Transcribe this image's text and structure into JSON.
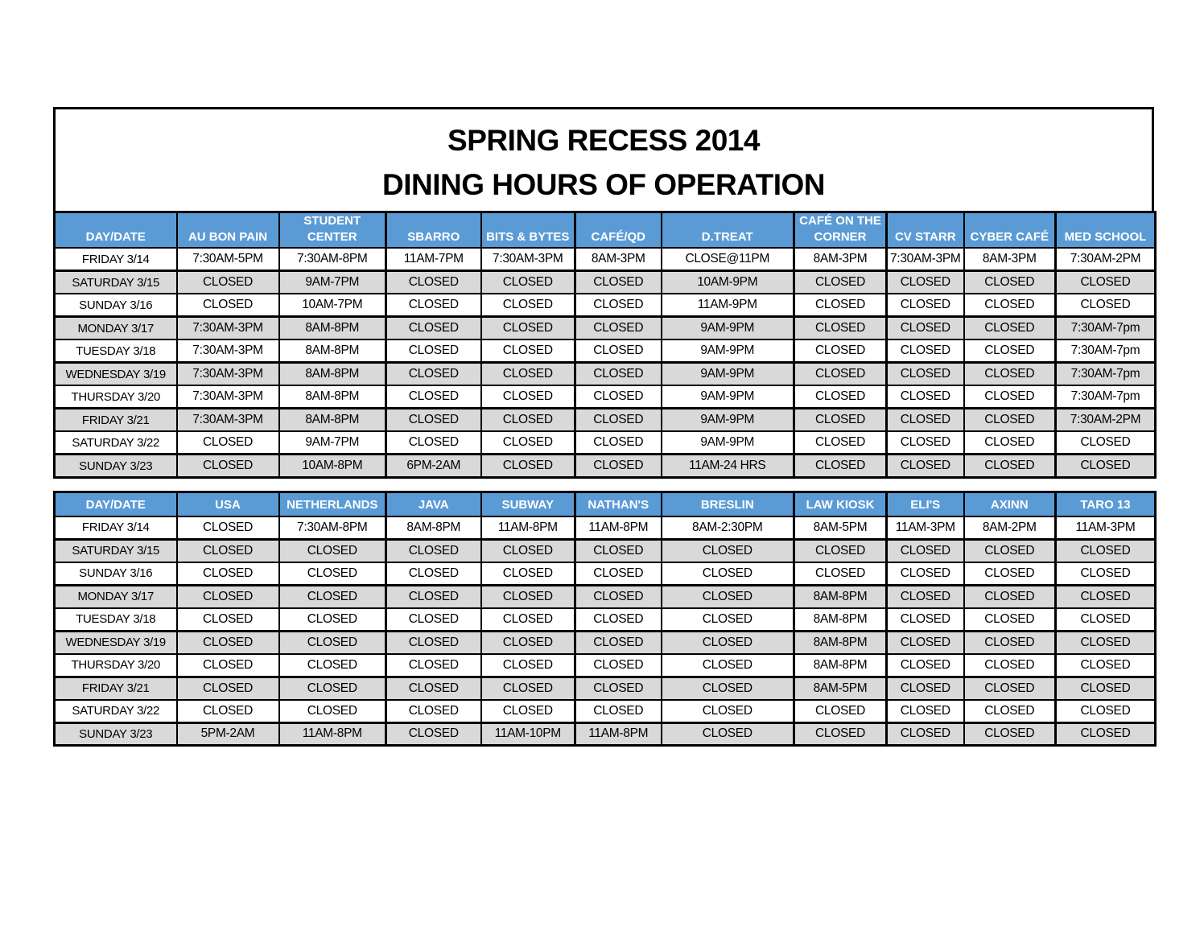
{
  "page": {
    "title_line1": "SPRING RECESS 2014",
    "title_line2": "DINING HOURS OF OPERATION"
  },
  "colors": {
    "header_bg": "#5B9BD5",
    "header_text": "#FFFFFF",
    "row_alt_bg": "#D9D9D9",
    "row_dark_bg": "#BFBFBF",
    "border": "#000000",
    "title_text": "#000000"
  },
  "table1": {
    "columns": [
      "DAY/DATE",
      "AU BON PAIN",
      "STUDENT\nCENTER",
      "SBARRO",
      "BITS & BYTES",
      "CAFÉ/QD",
      "D.TREAT",
      "CAFÉ ON THE\nCORNER",
      "CV STARR",
      "CYBER CAFÉ",
      "MED SCHOOL"
    ],
    "rows": [
      {
        "day": "FRIDAY 3/14",
        "cells": [
          "7:30AM-5PM",
          "7:30AM-8PM",
          "11AM-7PM",
          "7:30AM-3PM",
          "8AM-3PM",
          "CLOSE@11PM",
          "8AM-3PM",
          "7:30AM-3PM",
          "8AM-3PM",
          "7:30AM-2PM"
        ]
      },
      {
        "day": "SATURDAY 3/15",
        "cells": [
          "CLOSED",
          "9AM-7PM",
          "CLOSED",
          "CLOSED",
          "CLOSED",
          "10AM-9PM",
          "CLOSED",
          "CLOSED",
          "CLOSED",
          "CLOSED"
        ]
      },
      {
        "day": "SUNDAY 3/16",
        "cells": [
          "CLOSED",
          "10AM-7PM",
          "CLOSED",
          "CLOSED",
          "CLOSED",
          "11AM-9PM",
          "CLOSED",
          "CLOSED",
          "CLOSED",
          "CLOSED"
        ]
      },
      {
        "day": "MONDAY 3/17",
        "cells": [
          "7:30AM-3PM",
          "8AM-8PM",
          "CLOSED",
          "CLOSED",
          "CLOSED",
          "9AM-9PM",
          "CLOSED",
          "CLOSED",
          "CLOSED",
          "7:30AM-7pm"
        ]
      },
      {
        "day": "TUESDAY 3/18",
        "cells": [
          "7:30AM-3PM",
          "8AM-8PM",
          "CLOSED",
          "CLOSED",
          "CLOSED",
          "9AM-9PM",
          "CLOSED",
          "CLOSED",
          "CLOSED",
          "7:30AM-7pm"
        ]
      },
      {
        "day": "WEDNESDAY 3/19",
        "cells": [
          "7:30AM-3PM",
          "8AM-8PM",
          "CLOSED",
          "CLOSED",
          "CLOSED",
          "9AM-9PM",
          "CLOSED",
          "CLOSED",
          "CLOSED",
          "7:30AM-7pm"
        ]
      },
      {
        "day": "THURSDAY 3/20",
        "cells": [
          "7:30AM-3PM",
          "8AM-8PM",
          "CLOSED",
          "CLOSED",
          "CLOSED",
          "9AM-9PM",
          "CLOSED",
          "CLOSED",
          "CLOSED",
          "7:30AM-7pm"
        ]
      },
      {
        "day": "FRIDAY 3/21",
        "cells": [
          "7:30AM-3PM",
          "8AM-8PM",
          "CLOSED",
          "CLOSED",
          "CLOSED",
          "9AM-9PM",
          "CLOSED",
          "CLOSED",
          "CLOSED",
          "7:30AM-2PM"
        ]
      },
      {
        "day": "SATURDAY 3/22",
        "cells": [
          "CLOSED",
          "9AM-7PM",
          "CLOSED",
          "CLOSED",
          "CLOSED",
          "9AM-9PM",
          "CLOSED",
          "CLOSED",
          "CLOSED",
          "CLOSED"
        ]
      },
      {
        "day": "SUNDAY 3/23",
        "cells": [
          "CLOSED",
          "10AM-8PM",
          "6PM-2AM",
          "CLOSED",
          "CLOSED",
          "11AM-24 HRS",
          "CLOSED",
          "CLOSED",
          "CLOSED",
          "CLOSED"
        ],
        "dark_cells": [
          3,
          4,
          5,
          6,
          7,
          8,
          9
        ]
      }
    ]
  },
  "table2": {
    "columns": [
      "DAY/DATE",
      "USA",
      "NETHERLANDS",
      "JAVA",
      "SUBWAY",
      "NATHAN'S",
      "BRESLIN",
      "LAW KIOSK",
      "ELI'S",
      "AXINN",
      "TARO 13"
    ],
    "rows": [
      {
        "day": "FRIDAY 3/14",
        "cells": [
          "CLOSED",
          "7:30AM-8PM",
          "8AM-8PM",
          "11AM-8PM",
          "11AM-8PM",
          "8AM-2:30PM",
          "8AM-5PM",
          "11AM-3PM",
          "8AM-2PM",
          "11AM-3PM"
        ]
      },
      {
        "day": "SATURDAY 3/15",
        "cells": [
          "CLOSED",
          "CLOSED",
          "CLOSED",
          "CLOSED",
          "CLOSED",
          "CLOSED",
          "CLOSED",
          "CLOSED",
          "CLOSED",
          "CLOSED"
        ]
      },
      {
        "day": "SUNDAY 3/16",
        "cells": [
          "CLOSED",
          "CLOSED",
          "CLOSED",
          "CLOSED",
          "CLOSED",
          "CLOSED",
          "CLOSED",
          "CLOSED",
          "CLOSED",
          "CLOSED"
        ]
      },
      {
        "day": "MONDAY 3/17",
        "cells": [
          "CLOSED",
          "CLOSED",
          "CLOSED",
          "CLOSED",
          "CLOSED",
          "CLOSED",
          "8AM-8PM",
          "CLOSED",
          "CLOSED",
          "CLOSED"
        ]
      },
      {
        "day": "TUESDAY 3/18",
        "cells": [
          "CLOSED",
          "CLOSED",
          "CLOSED",
          "CLOSED",
          "CLOSED",
          "CLOSED",
          "8AM-8PM",
          "CLOSED",
          "CLOSED",
          "CLOSED"
        ]
      },
      {
        "day": "WEDNESDAY 3/19",
        "cells": [
          "CLOSED",
          "CLOSED",
          "CLOSED",
          "CLOSED",
          "CLOSED",
          "CLOSED",
          "8AM-8PM",
          "CLOSED",
          "CLOSED",
          "CLOSED"
        ]
      },
      {
        "day": "THURSDAY 3/20",
        "cells": [
          "CLOSED",
          "CLOSED",
          "CLOSED",
          "CLOSED",
          "CLOSED",
          "CLOSED",
          "8AM-8PM",
          "CLOSED",
          "CLOSED",
          "CLOSED"
        ]
      },
      {
        "day": "FRIDAY 3/21",
        "cells": [
          "CLOSED",
          "CLOSED",
          "CLOSED",
          "CLOSED",
          "CLOSED",
          "CLOSED",
          "8AM-5PM",
          "CLOSED",
          "CLOSED",
          "CLOSED"
        ]
      },
      {
        "day": "SATURDAY 3/22",
        "cells": [
          "CLOSED",
          "CLOSED",
          "CLOSED",
          "CLOSED",
          "CLOSED",
          "CLOSED",
          "CLOSED",
          "CLOSED",
          "CLOSED",
          "CLOSED"
        ]
      },
      {
        "day": "SUNDAY 3/23",
        "cells": [
          "5PM-2AM",
          "11AM-8PM",
          "CLOSED",
          "11AM-10PM",
          "11AM-8PM",
          "CLOSED",
          "CLOSED",
          "CLOSED",
          "CLOSED",
          "CLOSED"
        ]
      }
    ]
  }
}
